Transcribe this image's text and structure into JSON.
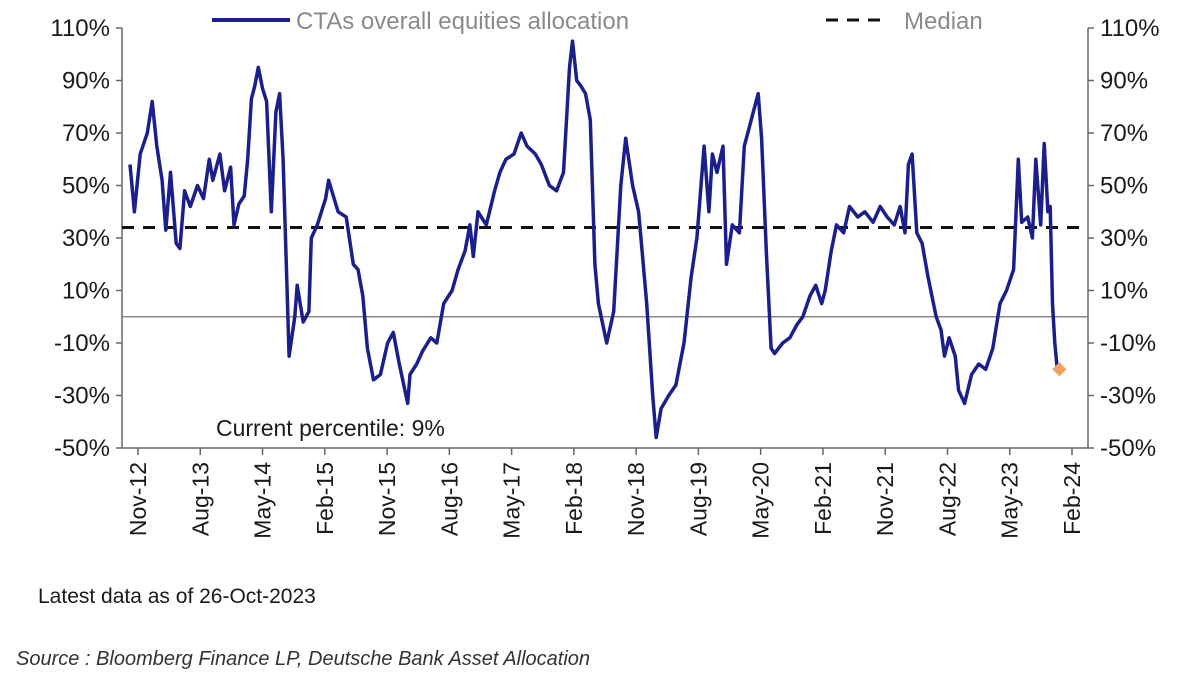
{
  "chart_data": {
    "type": "line",
    "title": "",
    "xlabel": "",
    "ylabel": "",
    "ylim": [
      -50,
      110
    ],
    "y_ticks": [
      "110%",
      "90%",
      "70%",
      "50%",
      "30%",
      "10%",
      "-10%",
      "-30%",
      "-50%"
    ],
    "x_ticks": [
      "Nov-12",
      "Aug-13",
      "May-14",
      "Feb-15",
      "Nov-15",
      "Aug-16",
      "May-17",
      "Feb-18",
      "Nov-18",
      "Aug-19",
      "May-20",
      "Feb-21",
      "Nov-21",
      "Aug-22",
      "May-23",
      "Feb-24"
    ],
    "legend": {
      "placement": "top",
      "series_label": "CTAs overall equities allocation",
      "median_label": "Median"
    },
    "median": 34,
    "annotation": "Current percentile: 9%",
    "latest_point": {
      "date": "2023-10-26",
      "value": -20,
      "color": "#f0a460"
    },
    "line_color": "#1a1f8c",
    "series": [
      {
        "name": "CTAs overall equities allocation",
        "points": [
          [
            "2012-11-01",
            58
          ],
          [
            "2012-11-20",
            40
          ],
          [
            "2012-12-15",
            62
          ],
          [
            "2013-01-15",
            70
          ],
          [
            "2013-02-05",
            82
          ],
          [
            "2013-02-25",
            65
          ],
          [
            "2013-03-20",
            52
          ],
          [
            "2013-04-05",
            33
          ],
          [
            "2013-04-25",
            55
          ],
          [
            "2013-05-20",
            28
          ],
          [
            "2013-06-05",
            26
          ],
          [
            "2013-06-25",
            48
          ],
          [
            "2013-07-20",
            42
          ],
          [
            "2013-08-20",
            50
          ],
          [
            "2013-09-15",
            45
          ],
          [
            "2013-10-10",
            60
          ],
          [
            "2013-10-25",
            52
          ],
          [
            "2013-11-25",
            62
          ],
          [
            "2013-12-15",
            48
          ],
          [
            "2014-01-10",
            57
          ],
          [
            "2014-01-25",
            35
          ],
          [
            "2014-02-15",
            43
          ],
          [
            "2014-03-10",
            46
          ],
          [
            "2014-03-25",
            60
          ],
          [
            "2014-04-10",
            83
          ],
          [
            "2014-04-25",
            88
          ],
          [
            "2014-05-10",
            95
          ],
          [
            "2014-05-28",
            87
          ],
          [
            "2014-06-15",
            82
          ],
          [
            "2014-07-05",
            40
          ],
          [
            "2014-07-25",
            78
          ],
          [
            "2014-08-10",
            85
          ],
          [
            "2014-08-25",
            60
          ],
          [
            "2014-09-20",
            -15
          ],
          [
            "2014-10-15",
            0
          ],
          [
            "2014-10-25",
            12
          ],
          [
            "2014-11-20",
            -2
          ],
          [
            "2014-12-15",
            2
          ],
          [
            "2014-12-25",
            30
          ],
          [
            "2015-01-20",
            35
          ],
          [
            "2015-02-25",
            45
          ],
          [
            "2015-03-10",
            52
          ],
          [
            "2015-04-20",
            40
          ],
          [
            "2015-05-25",
            38
          ],
          [
            "2015-06-25",
            20
          ],
          [
            "2015-07-15",
            18
          ],
          [
            "2015-08-05",
            8
          ],
          [
            "2015-08-25",
            -12
          ],
          [
            "2015-09-20",
            -24
          ],
          [
            "2015-10-20",
            -22
          ],
          [
            "2015-11-20",
            -10
          ],
          [
            "2015-12-15",
            -6
          ],
          [
            "2016-01-10",
            -18
          ],
          [
            "2016-02-15",
            -33
          ],
          [
            "2016-02-25",
            -22
          ],
          [
            "2016-03-25",
            -18
          ],
          [
            "2016-04-20",
            -13
          ],
          [
            "2016-05-25",
            -8
          ],
          [
            "2016-06-20",
            -10
          ],
          [
            "2016-07-20",
            5
          ],
          [
            "2016-08-25",
            10
          ],
          [
            "2016-09-20",
            18
          ],
          [
            "2016-10-20",
            25
          ],
          [
            "2016-11-10",
            35
          ],
          [
            "2016-11-25",
            23
          ],
          [
            "2016-12-15",
            40
          ],
          [
            "2017-01-20",
            35
          ],
          [
            "2017-02-25",
            48
          ],
          [
            "2017-03-20",
            55
          ],
          [
            "2017-04-15",
            60
          ],
          [
            "2017-05-20",
            62
          ],
          [
            "2017-06-20",
            70
          ],
          [
            "2017-07-15",
            65
          ],
          [
            "2017-08-20",
            62
          ],
          [
            "2017-09-15",
            58
          ],
          [
            "2017-10-20",
            50
          ],
          [
            "2017-11-20",
            48
          ],
          [
            "2017-12-20",
            55
          ],
          [
            "2018-01-15",
            95
          ],
          [
            "2018-01-28",
            105
          ],
          [
            "2018-02-15",
            90
          ],
          [
            "2018-03-05",
            88
          ],
          [
            "2018-03-25",
            85
          ],
          [
            "2018-04-15",
            75
          ],
          [
            "2018-05-05",
            20
          ],
          [
            "2018-05-20",
            5
          ],
          [
            "2018-06-25",
            -10
          ],
          [
            "2018-07-25",
            2
          ],
          [
            "2018-08-25",
            50
          ],
          [
            "2018-09-15",
            68
          ],
          [
            "2018-10-15",
            50
          ],
          [
            "2018-11-10",
            40
          ],
          [
            "2018-11-25",
            25
          ],
          [
            "2018-12-15",
            5
          ],
          [
            "2019-01-10",
            -30
          ],
          [
            "2019-01-25",
            -46
          ],
          [
            "2019-02-15",
            -35
          ],
          [
            "2019-03-20",
            -30
          ],
          [
            "2019-04-20",
            -26
          ],
          [
            "2019-05-25",
            -10
          ],
          [
            "2019-06-25",
            15
          ],
          [
            "2019-07-20",
            30
          ],
          [
            "2019-08-20",
            65
          ],
          [
            "2019-09-10",
            40
          ],
          [
            "2019-09-25",
            62
          ],
          [
            "2019-10-15",
            55
          ],
          [
            "2019-11-10",
            65
          ],
          [
            "2019-11-25",
            20
          ],
          [
            "2019-12-20",
            35
          ],
          [
            "2020-01-20",
            32
          ],
          [
            "2020-02-10",
            65
          ],
          [
            "2020-02-25",
            70
          ],
          [
            "2020-03-20",
            78
          ],
          [
            "2020-04-10",
            85
          ],
          [
            "2020-04-25",
            68
          ],
          [
            "2020-05-15",
            25
          ],
          [
            "2020-06-05",
            -12
          ],
          [
            "2020-06-20",
            -14
          ],
          [
            "2020-07-25",
            -10
          ],
          [
            "2020-08-25",
            -8
          ],
          [
            "2020-09-25",
            -3
          ],
          [
            "2020-10-20",
            0
          ],
          [
            "2020-11-20",
            8
          ],
          [
            "2020-12-15",
            12
          ],
          [
            "2021-01-10",
            5
          ],
          [
            "2021-01-25",
            10
          ],
          [
            "2021-02-20",
            25
          ],
          [
            "2021-03-15",
            35
          ],
          [
            "2021-04-15",
            32
          ],
          [
            "2021-05-10",
            42
          ],
          [
            "2021-06-15",
            38
          ],
          [
            "2021-07-15",
            40
          ],
          [
            "2021-08-20",
            36
          ],
          [
            "2021-09-20",
            42
          ],
          [
            "2021-10-20",
            38
          ],
          [
            "2021-11-20",
            35
          ],
          [
            "2021-12-15",
            42
          ],
          [
            "2022-01-05",
            32
          ],
          [
            "2022-01-20",
            58
          ],
          [
            "2022-02-05",
            62
          ],
          [
            "2022-02-25",
            32
          ],
          [
            "2022-03-20",
            28
          ],
          [
            "2022-04-15",
            15
          ],
          [
            "2022-05-20",
            0
          ],
          [
            "2022-06-10",
            -5
          ],
          [
            "2022-06-25",
            -15
          ],
          [
            "2022-07-15",
            -8
          ],
          [
            "2022-08-10",
            -15
          ],
          [
            "2022-08-25",
            -28
          ],
          [
            "2022-09-20",
            -33
          ],
          [
            "2022-10-20",
            -22
          ],
          [
            "2022-11-20",
            -18
          ],
          [
            "2022-12-20",
            -20
          ],
          [
            "2023-01-20",
            -12
          ],
          [
            "2023-02-20",
            5
          ],
          [
            "2023-03-20",
            10
          ],
          [
            "2023-04-20",
            18
          ],
          [
            "2023-05-10",
            60
          ],
          [
            "2023-05-25",
            36
          ],
          [
            "2023-06-20",
            38
          ],
          [
            "2023-07-10",
            30
          ],
          [
            "2023-07-25",
            60
          ],
          [
            "2023-08-15",
            35
          ],
          [
            "2023-08-30",
            66
          ],
          [
            "2023-09-15",
            40
          ],
          [
            "2023-09-25",
            42
          ],
          [
            "2023-10-05",
            5
          ],
          [
            "2023-10-15",
            -10
          ],
          [
            "2023-10-26",
            -20
          ]
        ]
      }
    ]
  },
  "footer": {
    "latest": "Latest data as of 26-Oct-2023",
    "source": "Source : Bloomberg Finance LP, Deutsche Bank Asset Allocation"
  }
}
